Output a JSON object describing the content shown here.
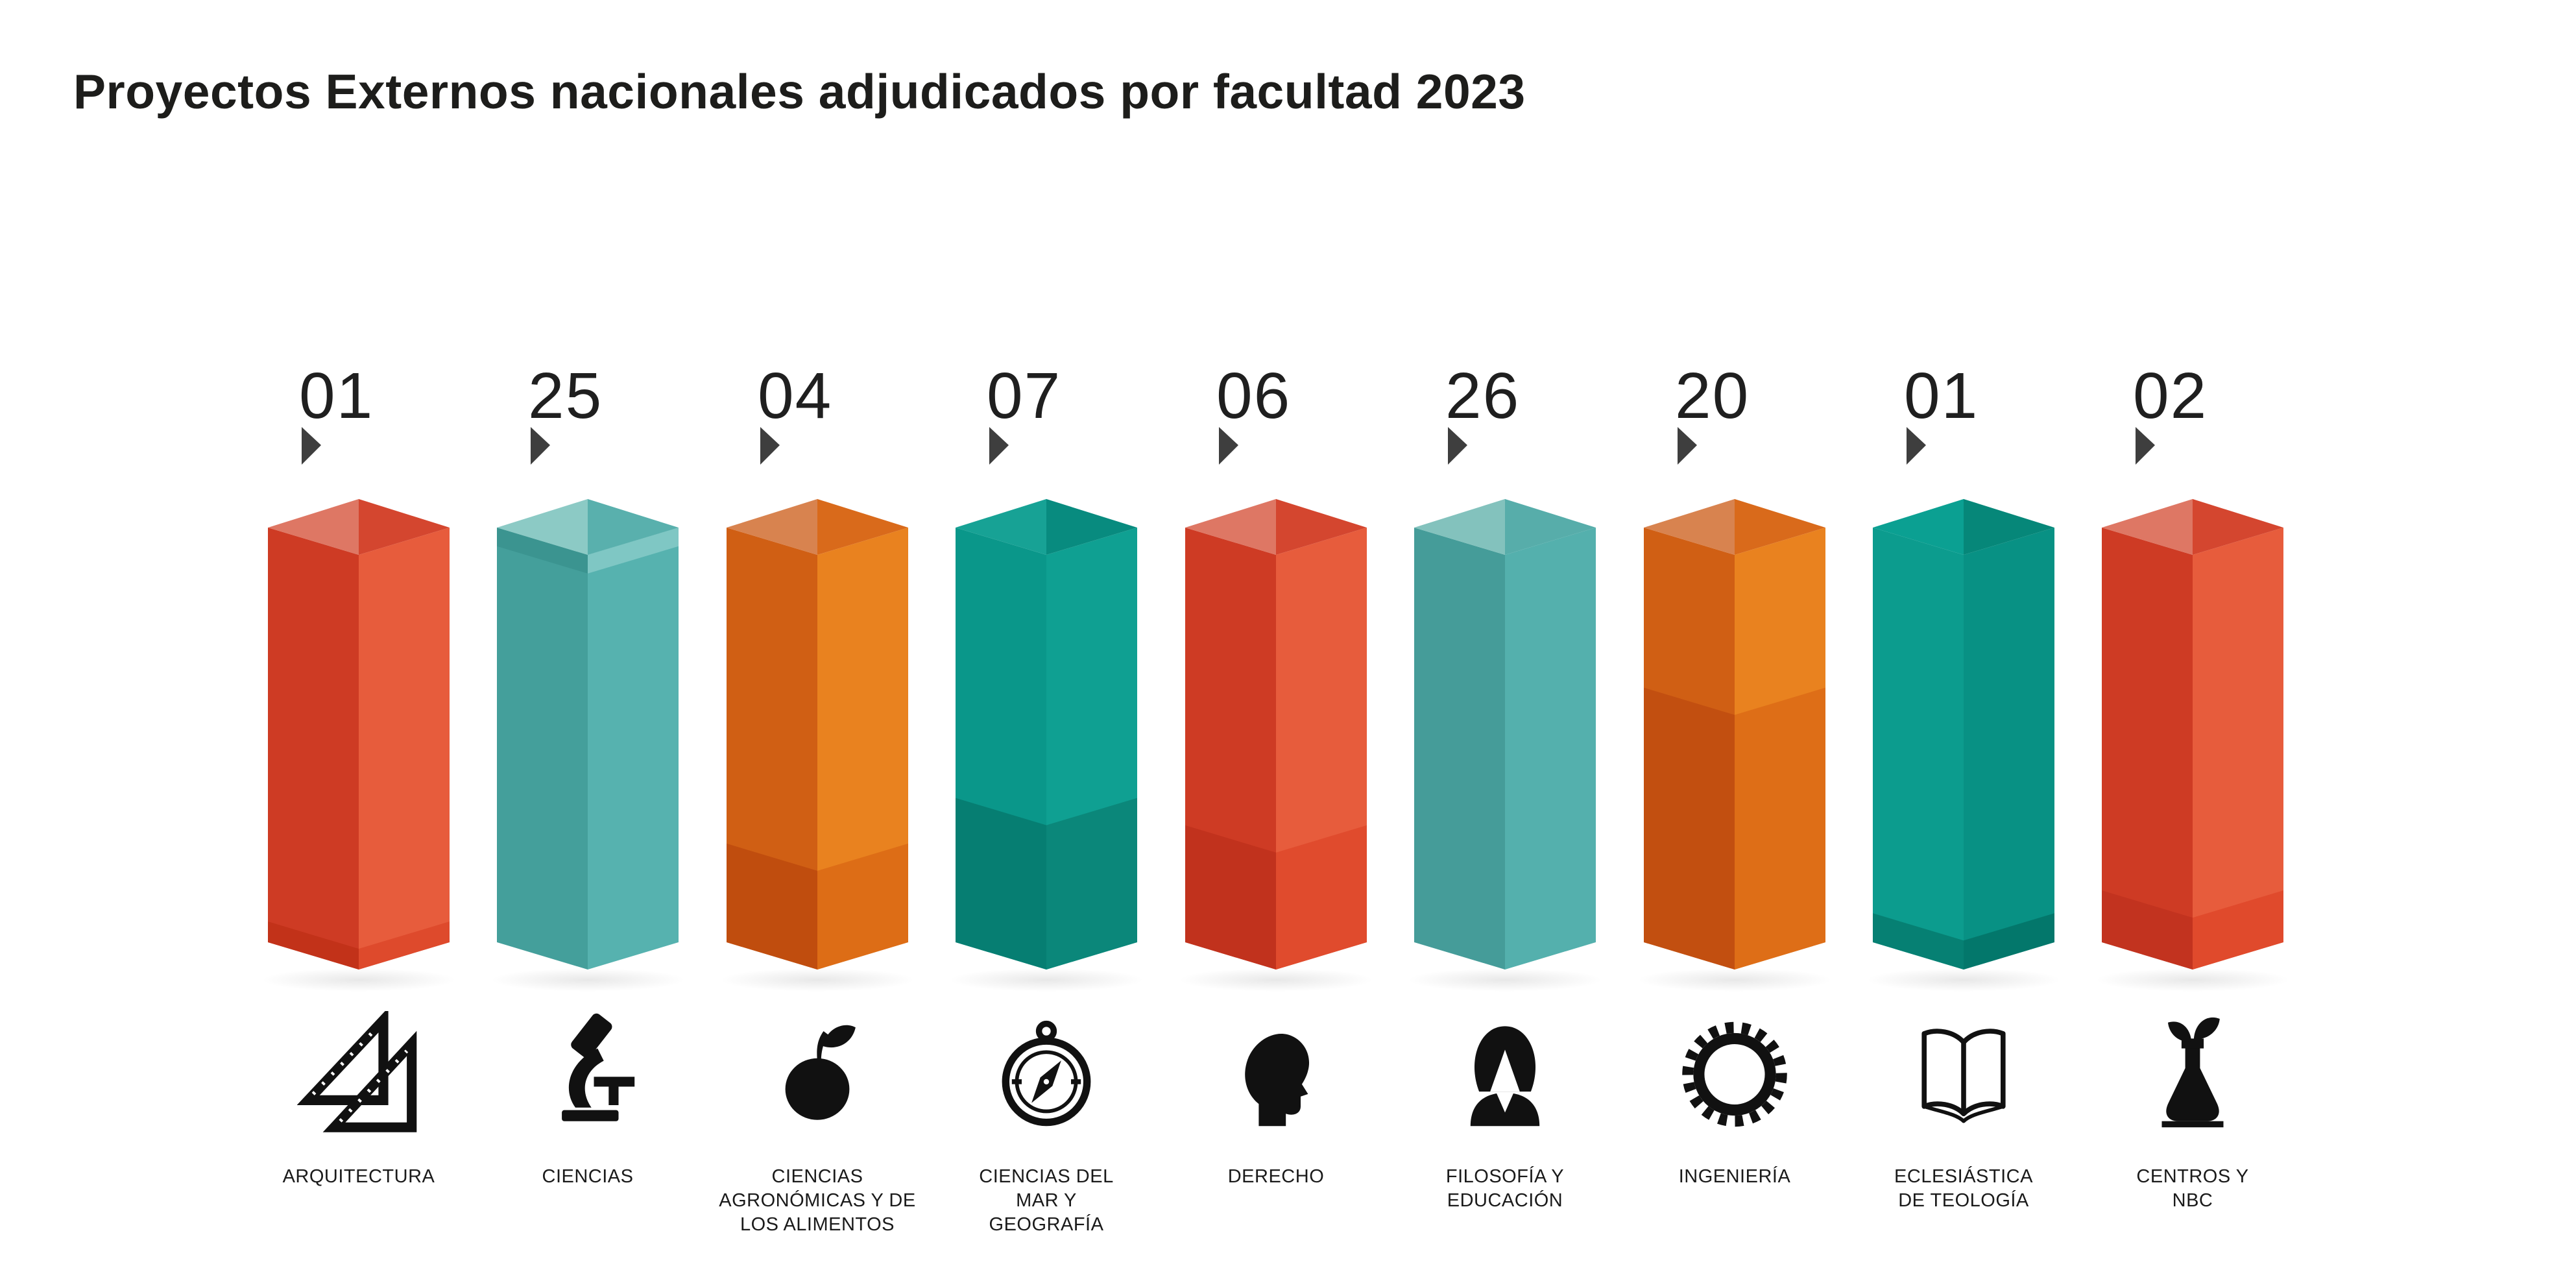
{
  "title": "Proyectos Externos nacionales adjudicados por facultad 2023",
  "chart_data": {
    "type": "bar",
    "title": "Proyectos Externos nacionales adjudicados por facultad 2023",
    "categories": [
      "ARQUITECTURA",
      "CIENCIAS",
      "CIENCIAS AGRONÓMICAS Y DE LOS ALIMENTOS",
      "CIENCIAS DEL MAR Y GEOGRAFÍA",
      "DERECHO",
      "FILOSOFÍA Y EDUCACIÓN",
      "INGENIERÍA",
      "ECLESIÁSTICA DE TEOLOGÍA",
      "CENTROS Y NBC"
    ],
    "values": [
      1,
      25,
      4,
      7,
      6,
      26,
      20,
      1,
      2
    ],
    "value_labels": [
      "01",
      "25",
      "04",
      "07",
      "06",
      "26",
      "20",
      "01",
      "02"
    ],
    "xlabel": "",
    "ylabel": "",
    "grid": false,
    "legend": false,
    "note": "Infographic 3D pictogram: all nine prism columns are drawn at equal height; the value of each faculty is shown as a two-digit number above its column."
  },
  "columns": [
    {
      "id": "arquitectura",
      "value_label": "01",
      "label_lines": [
        "ARQUITECTURA"
      ],
      "icon": "set-squares-icon",
      "colors": {
        "top_left": "#de7764",
        "top_right": "#d4462f",
        "face_left": "#ce3b24",
        "face_right": "#e75c3c"
      },
      "segments": [
        {
          "from": 0.95,
          "to": 1,
          "left": "#c23219",
          "right": "#de4a2c"
        }
      ]
    },
    {
      "id": "ciencias",
      "value_label": "25",
      "label_lines": [
        "CIENCIAS"
      ],
      "icon": "microscope-icon",
      "colors": {
        "top_left": "#8ccac5",
        "top_right": "#59b0ad",
        "face_left": "#449f9b",
        "face_right": "#56b2af"
      },
      "segments": [
        {
          "from": 0,
          "to": 0.045,
          "left": "#3b9490",
          "right": "#7fc7c4"
        }
      ]
    },
    {
      "id": "ciencias-agronomicas",
      "value_label": "04",
      "label_lines": [
        "CIENCIAS",
        "AGRONÓMICAS Y DE",
        "LOS ALIMENTOS"
      ],
      "icon": "apple-icon",
      "colors": {
        "top_left": "#d8834f",
        "top_right": "#d96a1b",
        "face_left": "#d05f14",
        "face_right": "#e9821f"
      },
      "segments": [
        {
          "from": 0.762,
          "to": 1,
          "left": "#c04d0e",
          "right": "#dd6d16"
        }
      ]
    },
    {
      "id": "ciencias-del-mar-geografia",
      "value_label": "07",
      "label_lines": [
        "CIENCIAS DEL",
        "MAR Y",
        "GEOGRAFÍA"
      ],
      "icon": "compass-icon",
      "colors": {
        "top_left": "#17a295",
        "top_right": "#088b7f",
        "face_left": "#0a978a",
        "face_right": "#0fa092"
      },
      "segments": [
        {
          "from": 0.652,
          "to": 1,
          "left": "#067e72",
          "right": "#0b877a"
        }
      ]
    },
    {
      "id": "derecho",
      "value_label": "06",
      "label_lines": [
        "DERECHO"
      ],
      "icon": "head-profile-icon",
      "colors": {
        "top_left": "#de7764",
        "top_right": "#d4462f",
        "face_left": "#ce3b24",
        "face_right": "#e75c3c"
      },
      "segments": [
        {
          "from": 0.718,
          "to": 1,
          "left": "#c1321d",
          "right": "#e04b2d"
        }
      ]
    },
    {
      "id": "filosofia-educacion",
      "value_label": "26",
      "label_lines": [
        "FILOSOFÍA Y",
        "EDUCACIÓN"
      ],
      "icon": "woman-icon",
      "colors": {
        "top_left": "#83c2bd",
        "top_right": "#57adaa",
        "face_left": "#459c99",
        "face_right": "#54b0ad"
      },
      "segments": []
    },
    {
      "id": "ingenieria",
      "value_label": "20",
      "label_lines": [
        "INGENIERÍA"
      ],
      "icon": "gear-icon",
      "colors": {
        "top_left": "#d8834f",
        "top_right": "#d96a1b",
        "face_left": "#d05f14",
        "face_right": "#e9821f"
      },
      "segments": [
        {
          "from": 0.386,
          "to": 1,
          "left": "#c24f10",
          "right": "#de6e17"
        }
      ]
    },
    {
      "id": "eclesiastica-de-teologia",
      "value_label": "01",
      "label_lines": [
        "ECLESIÁSTICA",
        "DE TEOLOGÍA"
      ],
      "icon": "open-book-icon",
      "colors": {
        "top_left": "#0ba092",
        "top_right": "#068779",
        "face_left": "#0c9c8e",
        "face_right": "#089184"
      },
      "segments": [
        {
          "from": 0.93,
          "to": 1,
          "left": "#068073",
          "right": "#03776b"
        }
      ]
    },
    {
      "id": "centros-nbc",
      "value_label": "02",
      "label_lines": [
        "CENTROS Y",
        "NBC"
      ],
      "icon": "flask-plant-icon",
      "colors": {
        "top_left": "#de7764",
        "top_right": "#d4462f",
        "face_left": "#ce3b24",
        "face_right": "#e75c3c"
      },
      "segments": [
        {
          "from": 0.875,
          "to": 1,
          "left": "#c2331f",
          "right": "#e04a2c"
        }
      ]
    }
  ],
  "pointer_color": "#3e3e3e",
  "icon_color": "#111111",
  "text_color": "#1a1a1a",
  "background_color": "#ffffff"
}
